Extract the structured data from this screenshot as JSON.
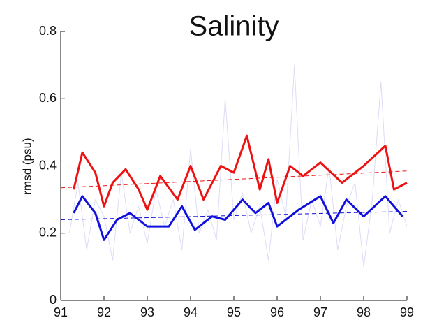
{
  "chart_data": {
    "type": "line",
    "title": "Salinity",
    "y_label": "rmsd (psu)",
    "xlim": [
      91,
      99
    ],
    "xticks": [
      91,
      92,
      93,
      94,
      95,
      96,
      97,
      98,
      99
    ],
    "ylim": [
      0,
      0.8
    ],
    "yticks": [
      0,
      0.2,
      0.4,
      0.6,
      0.8
    ],
    "series": [
      {
        "color": "#dcdcf5",
        "width": 1,
        "dash": false,
        "x": [
          91.2,
          91.4,
          91.6,
          91.8,
          92.0,
          92.2,
          92.4,
          92.6,
          92.8,
          93.0,
          93.2,
          93.4,
          93.6,
          93.8,
          94.0,
          94.2,
          94.4,
          94.6,
          94.8,
          95.0,
          95.2,
          95.4,
          95.6,
          95.8,
          96.0,
          96.2,
          96.4,
          96.6,
          96.8,
          97.0,
          97.2,
          97.4,
          97.6,
          97.8,
          98.0,
          98.2,
          98.4,
          98.6,
          98.8,
          99.0
        ],
        "values": [
          0.2,
          0.35,
          0.15,
          0.3,
          0.25,
          0.12,
          0.38,
          0.2,
          0.28,
          0.17,
          0.33,
          0.22,
          0.3,
          0.15,
          0.45,
          0.2,
          0.27,
          0.18,
          0.6,
          0.24,
          0.32,
          0.2,
          0.28,
          0.12,
          0.36,
          0.25,
          0.7,
          0.18,
          0.3,
          0.22,
          0.4,
          0.15,
          0.28,
          0.35,
          0.1,
          0.3,
          0.65,
          0.2,
          0.3,
          0.22
        ]
      },
      {
        "color": "#ee1111",
        "width": 3,
        "dash": false,
        "x": [
          91.3,
          91.5,
          91.8,
          92.0,
          92.2,
          92.5,
          92.8,
          93.0,
          93.3,
          93.7,
          94.0,
          94.3,
          94.7,
          95.0,
          95.3,
          95.6,
          95.8,
          96.0,
          96.3,
          96.6,
          97.0,
          97.5,
          98.0,
          98.5,
          98.7,
          99.0
        ],
        "values": [
          0.33,
          0.44,
          0.38,
          0.28,
          0.35,
          0.39,
          0.33,
          0.27,
          0.37,
          0.3,
          0.4,
          0.3,
          0.4,
          0.38,
          0.49,
          0.33,
          0.42,
          0.29,
          0.4,
          0.37,
          0.41,
          0.35,
          0.4,
          0.46,
          0.33,
          0.35
        ]
      },
      {
        "color": "#1111dd",
        "width": 3,
        "dash": false,
        "x": [
          91.3,
          91.5,
          91.8,
          92.0,
          92.3,
          92.6,
          93.0,
          93.5,
          93.8,
          94.1,
          94.5,
          94.8,
          95.2,
          95.5,
          95.8,
          96.0,
          96.5,
          97.0,
          97.3,
          97.6,
          98.0,
          98.5,
          98.9
        ],
        "values": [
          0.26,
          0.31,
          0.26,
          0.18,
          0.24,
          0.26,
          0.22,
          0.22,
          0.28,
          0.21,
          0.25,
          0.24,
          0.3,
          0.26,
          0.29,
          0.22,
          0.27,
          0.31,
          0.23,
          0.3,
          0.25,
          0.31,
          0.25
        ]
      },
      {
        "color": "#ee1111",
        "width": 1,
        "dash": true,
        "x": [
          91,
          99
        ],
        "values": [
          0.335,
          0.385
        ]
      },
      {
        "color": "#1111dd",
        "width": 1,
        "dash": true,
        "x": [
          91,
          99
        ],
        "values": [
          0.24,
          0.265
        ]
      }
    ]
  }
}
